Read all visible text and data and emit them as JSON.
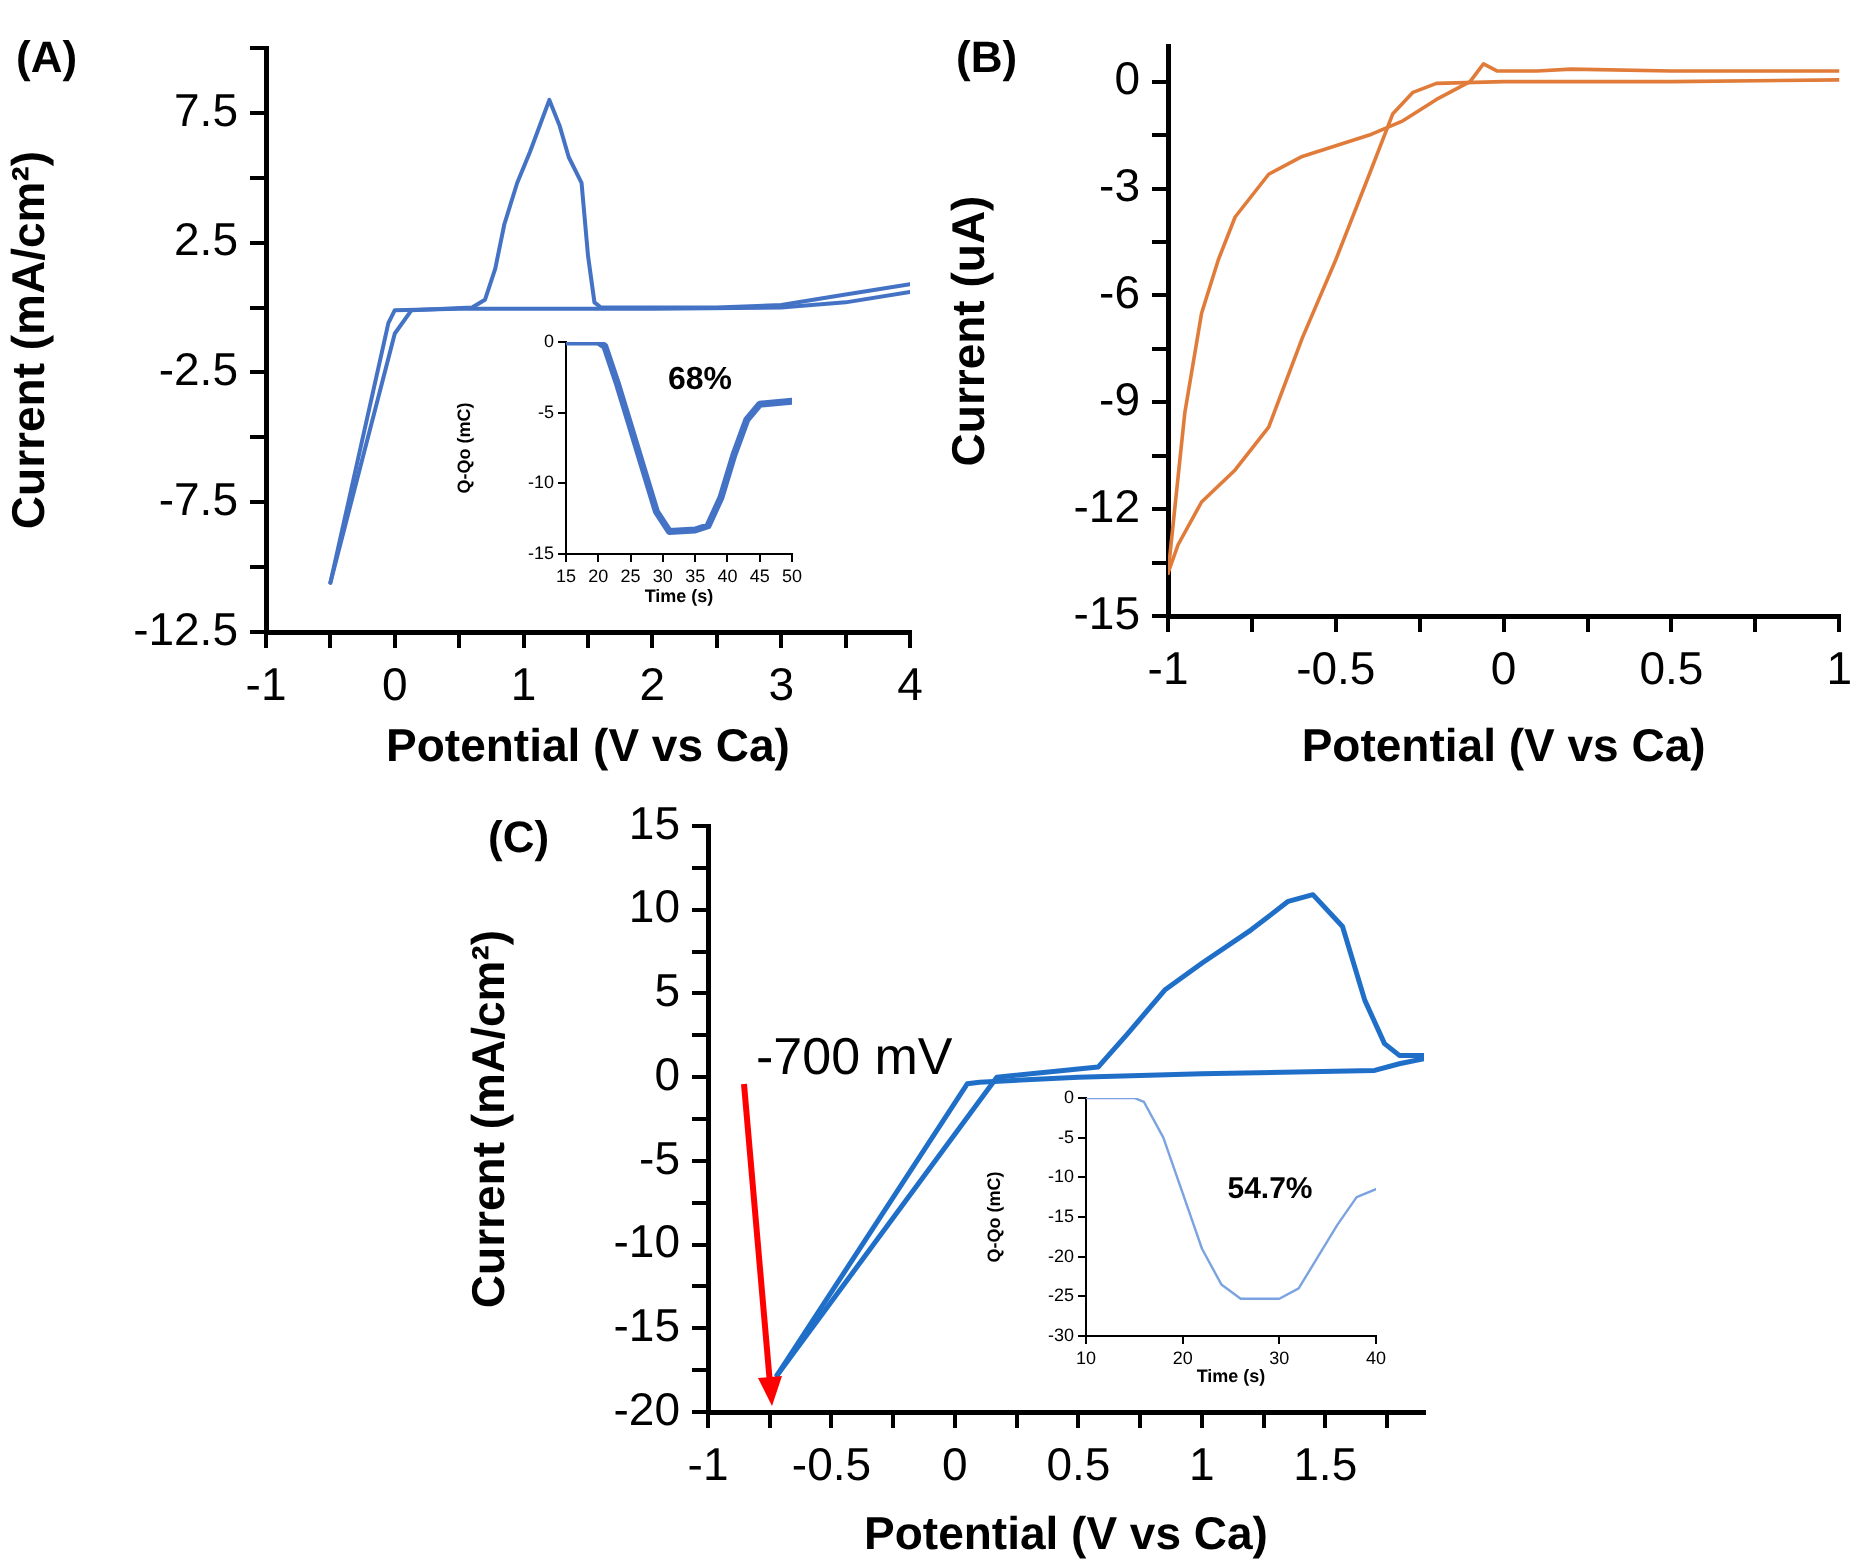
{
  "chart_data": [
    {
      "type": "line",
      "title": "(A)",
      "xlabel": "Potential (V vs Ca)",
      "ylabel": "Current (mA/cm²)",
      "xlim": [
        -1,
        4
      ],
      "ylim": [
        -12.5,
        10
      ],
      "xticks": [
        -1,
        {
          "value": -0.5,
          "label": null
        },
        0,
        {
          "value": 0.5,
          "label": null
        },
        1,
        {
          "value": 1.5,
          "label": null
        },
        2,
        {
          "value": 2.5,
          "label": null
        },
        3,
        {
          "value": 3.5,
          "label": null
        },
        4
      ],
      "yticks": [
        -12.5,
        {
          "value": -10,
          "label": null
        },
        -7.5,
        {
          "value": -5,
          "label": null
        },
        -2.5,
        {
          "value": 0,
          "label": null
        },
        2.5,
        {
          "value": 5,
          "label": null
        },
        7.5,
        {
          "value": 10,
          "label": null
        }
      ],
      "series": [
        {
          "color": "#4472c4",
          "x": [
            -0.5,
            -0.25,
            0.0,
            0.13,
            0.6,
            0.7,
            0.78,
            0.85,
            0.95,
            1.05,
            1.2,
            1.28,
            1.35,
            1.45,
            1.5,
            1.55,
            1.6,
            2.5,
            3.0,
            3.5,
            4.0
          ],
          "values": [
            -10.6,
            -5.8,
            -1.0,
            -0.1,
            0.0,
            0.3,
            1.5,
            3.2,
            4.8,
            6.0,
            8.0,
            7.0,
            5.8,
            4.8,
            2.0,
            0.2,
            0.0,
            0.0,
            0.1,
            0.5,
            0.9
          ]
        },
        {
          "color": "#4472c4",
          "x": [
            -0.5,
            -0.05,
            0.0,
            0.5,
            2.0,
            3.0,
            3.5,
            4.0
          ],
          "values": [
            -10.6,
            -0.6,
            -0.1,
            -0.05,
            -0.05,
            0.0,
            0.2,
            0.6
          ]
        }
      ]
    },
    {
      "type": "line",
      "xlabel": "Time (s)",
      "ylabel": "Q-Qo (mC)",
      "xlim": [
        15,
        50
      ],
      "ylim": [
        -15,
        0
      ],
      "xticks": [
        15,
        20,
        25,
        30,
        35,
        40,
        45,
        50
      ],
      "yticks": [
        -15,
        -10,
        -5,
        0
      ],
      "annotations": [
        "68%"
      ],
      "series": [
        {
          "color": "#4472c4",
          "x": [
            15,
            20,
            21,
            23,
            25,
            27,
            29,
            31,
            35,
            37,
            39,
            41,
            43,
            45,
            50
          ],
          "values": [
            0,
            0,
            -0.3,
            -3,
            -6,
            -9,
            -12,
            -13.4,
            -13.3,
            -13,
            -11,
            -8,
            -5.5,
            -4.4,
            -4.2
          ]
        }
      ]
    },
    {
      "type": "line",
      "title": "(B)",
      "xlabel": "Potential (V vs Ca)",
      "ylabel": "Current (uA)",
      "xlim": [
        -1,
        1
      ],
      "ylim": [
        -15,
        1
      ],
      "xticks": [
        -1,
        {
          "value": -0.75,
          "label": null
        },
        -0.5,
        {
          "value": -0.25,
          "label": null
        },
        0,
        {
          "value": 0.25,
          "label": null
        },
        0.5,
        {
          "value": 0.75,
          "label": null
        },
        1
      ],
      "yticks": [
        -15,
        {
          "value": -13.5,
          "label": null
        },
        -12,
        {
          "value": -10.5,
          "label": null
        },
        -9,
        {
          "value": -7.5,
          "label": null
        },
        -6,
        {
          "value": -4.5,
          "label": null
        },
        -3,
        {
          "value": -1.5,
          "label": null
        },
        0
      ],
      "series": [
        {
          "color": "#e07b39",
          "x": [
            -1,
            -0.95,
            -0.9,
            -0.85,
            -0.8,
            -0.7,
            -0.6,
            -0.5,
            -0.4,
            -0.3,
            -0.2,
            -0.1,
            -0.06,
            -0.02,
            0.1,
            0.2,
            0.5,
            1
          ],
          "values": [
            -13.8,
            -9.3,
            -6.5,
            -5.0,
            -3.8,
            -2.6,
            -2.1,
            -1.8,
            -1.5,
            -1.1,
            -0.5,
            0,
            0.5,
            0.3,
            0.3,
            0.35,
            0.3,
            0.3
          ]
        },
        {
          "color": "#e07b39",
          "x": [
            -1,
            -0.97,
            -0.9,
            -0.8,
            -0.7,
            -0.6,
            -0.5,
            -0.4,
            -0.33,
            -0.27,
            -0.2,
            0,
            0.5,
            1
          ],
          "values": [
            -13.8,
            -13.0,
            -11.8,
            -10.9,
            -9.7,
            -7.2,
            -5.0,
            -2.6,
            -0.9,
            -0.3,
            -0.05,
            0,
            0,
            0.05
          ]
        }
      ]
    },
    {
      "type": "line",
      "title": "(C)",
      "xlabel": "Potential (V vs Ca)",
      "ylabel": "Current (mA/cm²)",
      "xlim": [
        -1,
        1.9
      ],
      "ylim": [
        -20,
        15
      ],
      "annotations": [
        "-700 mV"
      ],
      "xticks": [
        -1,
        {
          "value": -0.75,
          "label": null
        },
        -0.5,
        {
          "value": -0.25,
          "label": null
        },
        0,
        {
          "value": 0.25,
          "label": null
        },
        0.5,
        {
          "value": 0.75,
          "label": null
        },
        1,
        {
          "value": 1.25,
          "label": null
        },
        1.5,
        {
          "value": 1.75,
          "label": null
        }
      ],
      "yticks": [
        -20,
        {
          "value": -17.5,
          "label": null
        },
        -15,
        {
          "value": -12.5,
          "label": null
        },
        -10,
        {
          "value": -7.5,
          "label": null
        },
        -5,
        {
          "value": -2.5,
          "label": null
        },
        0,
        {
          "value": 2.5,
          "label": null
        },
        5,
        {
          "value": 7.5,
          "label": null
        },
        10,
        {
          "value": 12.5,
          "label": null
        },
        15
      ],
      "series": [
        {
          "color": "#1f6fc8",
          "x": [
            -0.72,
            0.17,
            0.58,
            0.7,
            0.85,
            1.0,
            1.2,
            1.35,
            1.45,
            1.57,
            1.66,
            1.74,
            1.8,
            1.9
          ],
          "values": [
            -17.8,
            0,
            0.6,
            2.6,
            5.2,
            6.8,
            8.8,
            10.5,
            10.9,
            9,
            4.6,
            2,
            1.3,
            1.3
          ]
        },
        {
          "color": "#1f6fc8",
          "x": [
            -0.72,
            0.05,
            0.1,
            0.5,
            1.0,
            1.7,
            1.8,
            1.9
          ],
          "values": [
            -17.8,
            -0.4,
            -0.3,
            0,
            0.2,
            0.4,
            0.8,
            1.1
          ]
        }
      ]
    },
    {
      "type": "line",
      "xlabel": "Time (s)",
      "ylabel": "Q-Qo (mC)",
      "xlim": [
        10,
        40
      ],
      "ylim": [
        -30,
        0
      ],
      "xticks": [
        10,
        20,
        30,
        40
      ],
      "yticks": [
        -30,
        -25,
        -20,
        -15,
        -10,
        -5,
        0
      ],
      "annotations": [
        "54.7%"
      ],
      "series": [
        {
          "color": "#7ba3e0",
          "x": [
            10,
            15,
            16,
            18,
            20,
            22,
            24,
            26,
            30,
            32,
            34,
            36,
            38,
            40
          ],
          "values": [
            0,
            0,
            -0.5,
            -5,
            -12,
            -19,
            -23.5,
            -25.3,
            -25.3,
            -24,
            -20,
            -16,
            -12.5,
            -11.5
          ]
        }
      ]
    }
  ]
}
